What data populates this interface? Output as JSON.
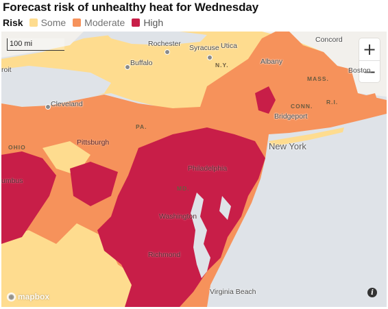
{
  "title": "Forecast risk of unhealthy heat for Wednesday",
  "legend": {
    "label": "Risk",
    "items": [
      {
        "label": "Some",
        "color": "#fedc8f"
      },
      {
        "label": "Moderate",
        "color": "#f6925b"
      },
      {
        "label": "High",
        "color": "#c81e48"
      }
    ]
  },
  "scale_bar": "100 mi",
  "zoom": {
    "in": "+",
    "out": "−"
  },
  "cities": {
    "rochester": "Rochester",
    "syracuse": "Syracuse",
    "utica": "Utica",
    "concord": "Concord",
    "buffalo": "Buffalo",
    "albany": "Albany",
    "boston": "Boston",
    "detroit": "roit",
    "cleveland": "Cleveland",
    "bridgeport": "Bridgeport",
    "pittsburgh": "Pittsburgh",
    "new_york": "New York",
    "philadelphia": "Philadelphia",
    "columbus": "umbus",
    "washington": "Washington",
    "richmond": "Richmond",
    "virginia_beach": "Virginia Beach"
  },
  "states": {
    "ny": "N.Y.",
    "mass": "MASS.",
    "conn": "CONN.",
    "ri": "R.I.",
    "pa": "PA.",
    "ohio": "OHIO",
    "md": "MD."
  },
  "attribution": "mapbox",
  "info_icon": "i"
}
